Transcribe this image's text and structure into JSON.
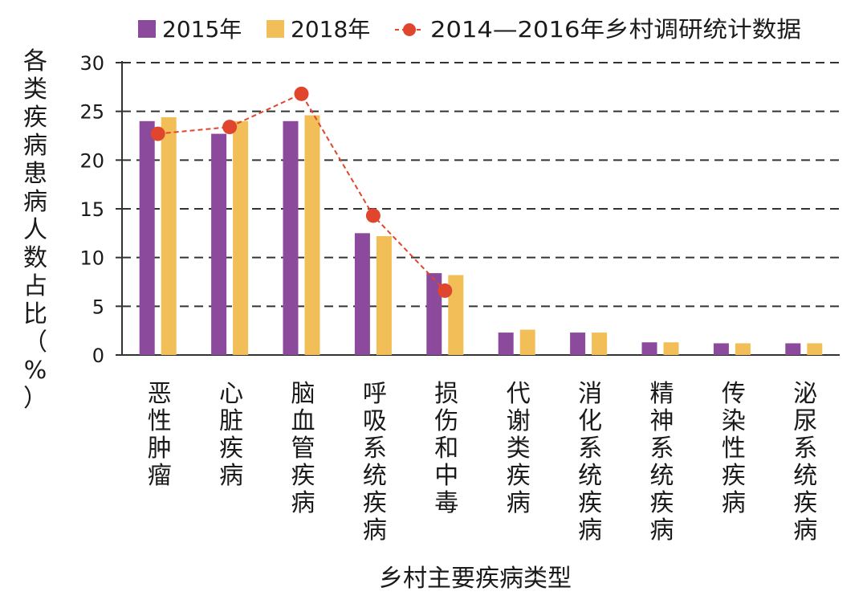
{
  "chart_data": {
    "type": "bar",
    "title": "",
    "xlabel": "乡村主要疾病类型",
    "ylabel": "各类疾病患病人数占比（%）",
    "ylim": [
      0,
      30
    ],
    "yticks": [
      0,
      5,
      10,
      15,
      20,
      25,
      30
    ],
    "grid": true,
    "legend_position": "top",
    "categories": [
      "恶性肿瘤",
      "心脏疾病",
      "脑血管疾病",
      "呼吸系统疾病",
      "损伤和中毒",
      "代谢类疾病",
      "消化系统疾病",
      "精神系统疾病",
      "传染性疾病",
      "泌尿系统疾病"
    ],
    "series": [
      {
        "name": "2015年",
        "type": "bar",
        "color": "#8B4A9C",
        "values": [
          24.0,
          22.7,
          24.0,
          12.5,
          8.4,
          2.3,
          2.3,
          1.3,
          1.2,
          1.2
        ]
      },
      {
        "name": "2018年",
        "type": "bar",
        "color": "#F2BE57",
        "values": [
          24.4,
          24.0,
          24.6,
          12.2,
          8.2,
          2.6,
          2.3,
          1.3,
          1.2,
          1.2
        ]
      },
      {
        "name": "2014—2016年乡村调研统计数据",
        "type": "line",
        "color": "#E0462E",
        "style": "dashed",
        "values": [
          22.7,
          23.4,
          26.8,
          14.3,
          6.6,
          null,
          null,
          null,
          null,
          null
        ]
      }
    ]
  }
}
